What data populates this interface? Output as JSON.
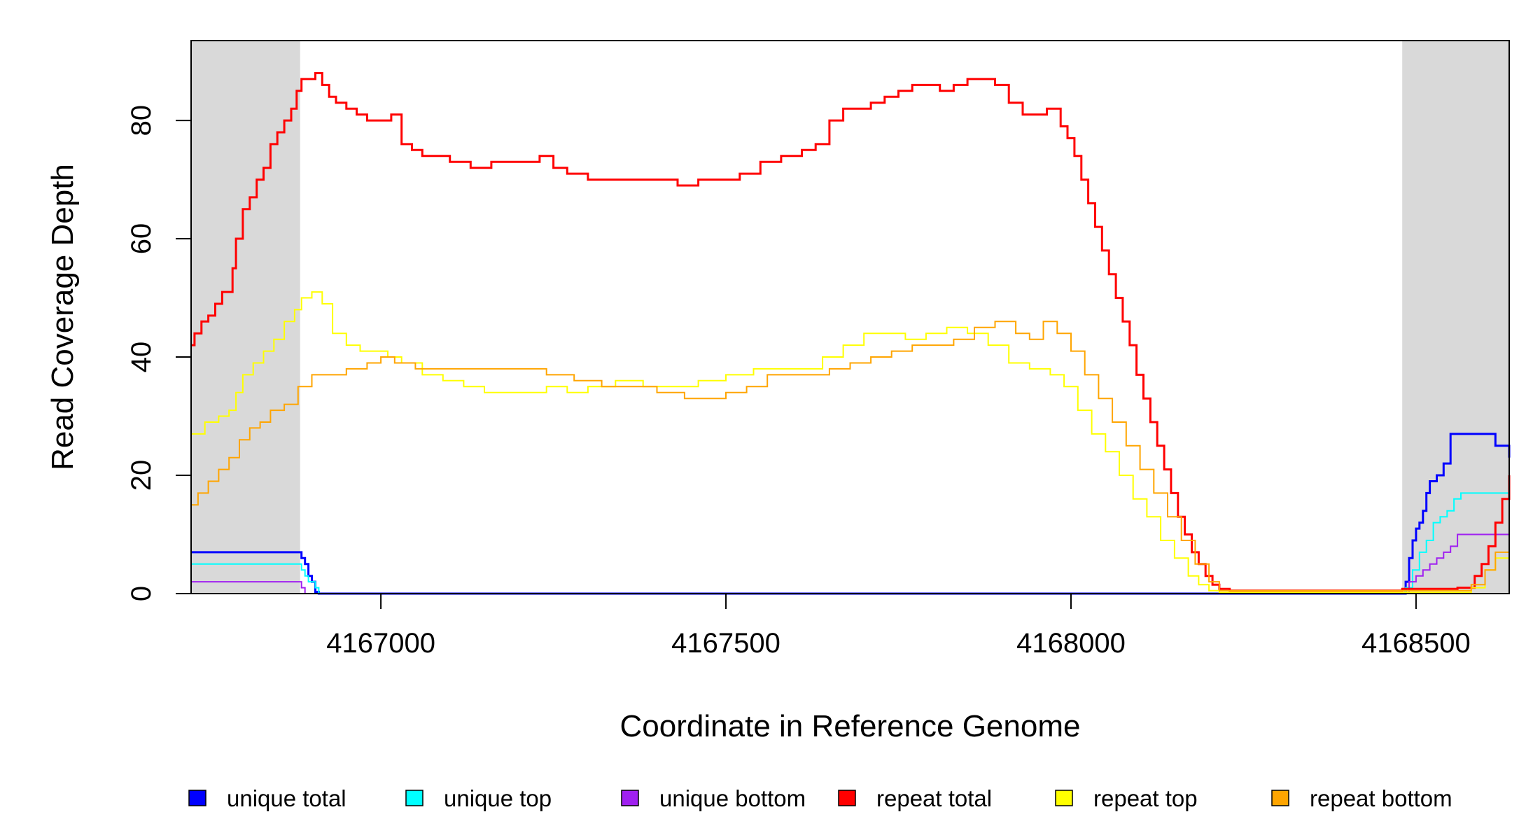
{
  "chart_data": {
    "type": "line",
    "title": "",
    "xlabel": "Coordinate in Reference Genome",
    "ylabel": "Read Coverage Depth",
    "xlim": [
      4166725,
      4168635
    ],
    "ylim": [
      0,
      93.5
    ],
    "x_ticks": [
      4167000,
      4167500,
      4168000,
      4168500
    ],
    "x_tick_labels": [
      "4167000",
      "4167500",
      "4168000",
      "4168500"
    ],
    "y_ticks": [
      0,
      20,
      40,
      60,
      80
    ],
    "y_tick_labels": [
      "0",
      "20",
      "40",
      "60",
      "80"
    ],
    "shaded_regions": [
      [
        4166725,
        4166883
      ],
      [
        4168480,
        4168635
      ]
    ],
    "grid": false,
    "legend_position": "bottom",
    "series": [
      {
        "name": "unique total",
        "color": "#0000ff",
        "width": 3,
        "points": [
          [
            4166725,
            7
          ],
          [
            4166880,
            7
          ],
          [
            4166885,
            6
          ],
          [
            4166890,
            5
          ],
          [
            4166895,
            3
          ],
          [
            4166900,
            2
          ],
          [
            4166905,
            0.3
          ],
          [
            4166910,
            0
          ],
          [
            4168480,
            0
          ],
          [
            4168485,
            2
          ],
          [
            4168490,
            6
          ],
          [
            4168495,
            9
          ],
          [
            4168500,
            11
          ],
          [
            4168505,
            12
          ],
          [
            4168510,
            14
          ],
          [
            4168515,
            17
          ],
          [
            4168520,
            19
          ],
          [
            4168530,
            20
          ],
          [
            4168540,
            22
          ],
          [
            4168550,
            27
          ],
          [
            4168610,
            27
          ],
          [
            4168615,
            25
          ],
          [
            4168630,
            25
          ],
          [
            4168635,
            23
          ]
        ]
      },
      {
        "name": "unique top",
        "color": "#00ffff",
        "width": 2,
        "points": [
          [
            4166725,
            5
          ],
          [
            4166880,
            5
          ],
          [
            4166885,
            4
          ],
          [
            4166890,
            3
          ],
          [
            4166895,
            2
          ],
          [
            4166905,
            1
          ],
          [
            4166910,
            0
          ],
          [
            4168480,
            0
          ],
          [
            4168485,
            1
          ],
          [
            4168495,
            4
          ],
          [
            4168505,
            7
          ],
          [
            4168515,
            9
          ],
          [
            4168525,
            12
          ],
          [
            4168535,
            13
          ],
          [
            4168545,
            14
          ],
          [
            4168555,
            16
          ],
          [
            4168565,
            17
          ],
          [
            4168635,
            15
          ]
        ]
      },
      {
        "name": "unique bottom",
        "color": "#a020f0",
        "width": 2,
        "points": [
          [
            4166725,
            2
          ],
          [
            4166880,
            2
          ],
          [
            4166885,
            1
          ],
          [
            4166890,
            0
          ],
          [
            4168480,
            0
          ],
          [
            4168490,
            2
          ],
          [
            4168500,
            3
          ],
          [
            4168510,
            4
          ],
          [
            4168520,
            5
          ],
          [
            4168530,
            6
          ],
          [
            4168540,
            7
          ],
          [
            4168550,
            8
          ],
          [
            4168560,
            10
          ],
          [
            4168610,
            10
          ],
          [
            4168635,
            9
          ]
        ]
      },
      {
        "name": "repeat total",
        "color": "#ff0000",
        "width": 3,
        "points": [
          [
            4166725,
            42
          ],
          [
            4166730,
            44
          ],
          [
            4166740,
            46
          ],
          [
            4166750,
            47
          ],
          [
            4166760,
            49
          ],
          [
            4166770,
            51
          ],
          [
            4166780,
            51
          ],
          [
            4166785,
            55
          ],
          [
            4166790,
            60
          ],
          [
            4166800,
            65
          ],
          [
            4166810,
            67
          ],
          [
            4166820,
            70
          ],
          [
            4166830,
            72
          ],
          [
            4166840,
            76
          ],
          [
            4166850,
            78
          ],
          [
            4166860,
            80
          ],
          [
            4166870,
            82
          ],
          [
            4166878,
            85
          ],
          [
            4166885,
            87
          ],
          [
            4166895,
            87
          ],
          [
            4166905,
            88
          ],
          [
            4166915,
            86
          ],
          [
            4166925,
            84
          ],
          [
            4166935,
            83
          ],
          [
            4166950,
            82
          ],
          [
            4166965,
            81
          ],
          [
            4166980,
            80
          ],
          [
            4167000,
            80
          ],
          [
            4167015,
            81
          ],
          [
            4167030,
            76
          ],
          [
            4167045,
            75
          ],
          [
            4167060,
            74
          ],
          [
            4167080,
            74
          ],
          [
            4167100,
            73
          ],
          [
            4167130,
            72
          ],
          [
            4167160,
            73
          ],
          [
            4167200,
            73
          ],
          [
            4167230,
            74
          ],
          [
            4167250,
            72
          ],
          [
            4167270,
            71
          ],
          [
            4167300,
            70
          ],
          [
            4167340,
            70
          ],
          [
            4167370,
            70
          ],
          [
            4167400,
            70
          ],
          [
            4167430,
            69
          ],
          [
            4167460,
            70
          ],
          [
            4167490,
            70
          ],
          [
            4167520,
            71
          ],
          [
            4167550,
            73
          ],
          [
            4167580,
            74
          ],
          [
            4167610,
            75
          ],
          [
            4167630,
            76
          ],
          [
            4167650,
            80
          ],
          [
            4167670,
            82
          ],
          [
            4167690,
            82
          ],
          [
            4167710,
            83
          ],
          [
            4167730,
            84
          ],
          [
            4167750,
            85
          ],
          [
            4167770,
            86
          ],
          [
            4167790,
            86
          ],
          [
            4167810,
            85
          ],
          [
            4167830,
            86
          ],
          [
            4167850,
            87
          ],
          [
            4167870,
            87
          ],
          [
            4167890,
            86
          ],
          [
            4167910,
            83
          ],
          [
            4167930,
            81
          ],
          [
            4167950,
            81
          ],
          [
            4167965,
            82
          ],
          [
            4167975,
            82
          ],
          [
            4167985,
            79
          ],
          [
            4167995,
            77
          ],
          [
            4168005,
            74
          ],
          [
            4168015,
            70
          ],
          [
            4168025,
            66
          ],
          [
            4168035,
            62
          ],
          [
            4168045,
            58
          ],
          [
            4168055,
            54
          ],
          [
            4168065,
            50
          ],
          [
            4168075,
            46
          ],
          [
            4168085,
            42
          ],
          [
            4168095,
            37
          ],
          [
            4168105,
            33
          ],
          [
            4168115,
            29
          ],
          [
            4168125,
            25
          ],
          [
            4168135,
            21
          ],
          [
            4168145,
            17
          ],
          [
            4168155,
            13
          ],
          [
            4168165,
            10
          ],
          [
            4168175,
            7
          ],
          [
            4168185,
            5
          ],
          [
            4168195,
            3
          ],
          [
            4168205,
            1.5
          ],
          [
            4168215,
            0.8
          ],
          [
            4168230,
            0.5
          ],
          [
            4168460,
            0.5
          ],
          [
            4168480,
            0.8
          ],
          [
            4168560,
            1
          ],
          [
            4168575,
            1
          ],
          [
            4168585,
            3
          ],
          [
            4168595,
            5
          ],
          [
            4168605,
            8
          ],
          [
            4168615,
            12
          ],
          [
            4168625,
            16
          ],
          [
            4168635,
            20
          ]
        ]
      },
      {
        "name": "repeat top",
        "color": "#ffff00",
        "width": 2,
        "points": [
          [
            4166725,
            27
          ],
          [
            4166745,
            29
          ],
          [
            4166765,
            30
          ],
          [
            4166780,
            31
          ],
          [
            4166790,
            34
          ],
          [
            4166800,
            37
          ],
          [
            4166815,
            39
          ],
          [
            4166830,
            41
          ],
          [
            4166845,
            43
          ],
          [
            4166860,
            46
          ],
          [
            4166875,
            48
          ],
          [
            4166885,
            50
          ],
          [
            4166900,
            51
          ],
          [
            4166915,
            49
          ],
          [
            4166930,
            44
          ],
          [
            4166950,
            42
          ],
          [
            4166970,
            41
          ],
          [
            4166990,
            41
          ],
          [
            4167010,
            40
          ],
          [
            4167030,
            39
          ],
          [
            4167060,
            37
          ],
          [
            4167090,
            36
          ],
          [
            4167120,
            35
          ],
          [
            4167150,
            34
          ],
          [
            4167200,
            34
          ],
          [
            4167240,
            35
          ],
          [
            4167270,
            34
          ],
          [
            4167300,
            35
          ],
          [
            4167340,
            36
          ],
          [
            4167380,
            35
          ],
          [
            4167420,
            35
          ],
          [
            4167460,
            36
          ],
          [
            4167500,
            37
          ],
          [
            4167540,
            38
          ],
          [
            4167580,
            38
          ],
          [
            4167610,
            38
          ],
          [
            4167640,
            40
          ],
          [
            4167670,
            42
          ],
          [
            4167700,
            44
          ],
          [
            4167730,
            44
          ],
          [
            4167760,
            43
          ],
          [
            4167790,
            44
          ],
          [
            4167820,
            45
          ],
          [
            4167850,
            44
          ],
          [
            4167880,
            42
          ],
          [
            4167910,
            39
          ],
          [
            4167940,
            38
          ],
          [
            4167970,
            37
          ],
          [
            4167990,
            35
          ],
          [
            4168010,
            31
          ],
          [
            4168030,
            27
          ],
          [
            4168050,
            24
          ],
          [
            4168070,
            20
          ],
          [
            4168090,
            16
          ],
          [
            4168110,
            13
          ],
          [
            4168130,
            9
          ],
          [
            4168150,
            6
          ],
          [
            4168170,
            3
          ],
          [
            4168185,
            1.5
          ],
          [
            4168200,
            0.5
          ],
          [
            4168215,
            0.2
          ],
          [
            4168560,
            0.2
          ],
          [
            4168580,
            1
          ],
          [
            4168600,
            4
          ],
          [
            4168615,
            6
          ],
          [
            4168635,
            8
          ]
        ]
      },
      {
        "name": "repeat bottom",
        "color": "#ffa500",
        "width": 2,
        "points": [
          [
            4166725,
            15
          ],
          [
            4166735,
            17
          ],
          [
            4166750,
            19
          ],
          [
            4166765,
            21
          ],
          [
            4166780,
            23
          ],
          [
            4166795,
            26
          ],
          [
            4166810,
            28
          ],
          [
            4166825,
            29
          ],
          [
            4166840,
            31
          ],
          [
            4166860,
            32
          ],
          [
            4166880,
            35
          ],
          [
            4166900,
            37
          ],
          [
            4166925,
            37
          ],
          [
            4166950,
            38
          ],
          [
            4166980,
            39
          ],
          [
            4167000,
            40
          ],
          [
            4167020,
            39
          ],
          [
            4167050,
            38
          ],
          [
            4167080,
            38
          ],
          [
            4167110,
            38
          ],
          [
            4167140,
            38
          ],
          [
            4167170,
            38
          ],
          [
            4167200,
            38
          ],
          [
            4167240,
            37
          ],
          [
            4167280,
            36
          ],
          [
            4167320,
            35
          ],
          [
            4167360,
            35
          ],
          [
            4167400,
            34
          ],
          [
            4167440,
            33
          ],
          [
            4167470,
            33
          ],
          [
            4167500,
            34
          ],
          [
            4167530,
            35
          ],
          [
            4167560,
            37
          ],
          [
            4167590,
            37
          ],
          [
            4167620,
            37
          ],
          [
            4167650,
            38
          ],
          [
            4167680,
            39
          ],
          [
            4167710,
            40
          ],
          [
            4167740,
            41
          ],
          [
            4167770,
            42
          ],
          [
            4167800,
            42
          ],
          [
            4167830,
            43
          ],
          [
            4167860,
            45
          ],
          [
            4167890,
            46
          ],
          [
            4167920,
            44
          ],
          [
            4167940,
            43
          ],
          [
            4167960,
            46
          ],
          [
            4167980,
            44
          ],
          [
            4168000,
            41
          ],
          [
            4168020,
            37
          ],
          [
            4168040,
            33
          ],
          [
            4168060,
            29
          ],
          [
            4168080,
            25
          ],
          [
            4168100,
            21
          ],
          [
            4168120,
            17
          ],
          [
            4168140,
            13
          ],
          [
            4168160,
            9
          ],
          [
            4168180,
            5
          ],
          [
            4168200,
            2
          ],
          [
            4168215,
            0.5
          ],
          [
            4168560,
            0.5
          ],
          [
            4168580,
            1.5
          ],
          [
            4168600,
            4
          ],
          [
            4168615,
            7
          ],
          [
            4168635,
            10
          ]
        ]
      }
    ]
  }
}
